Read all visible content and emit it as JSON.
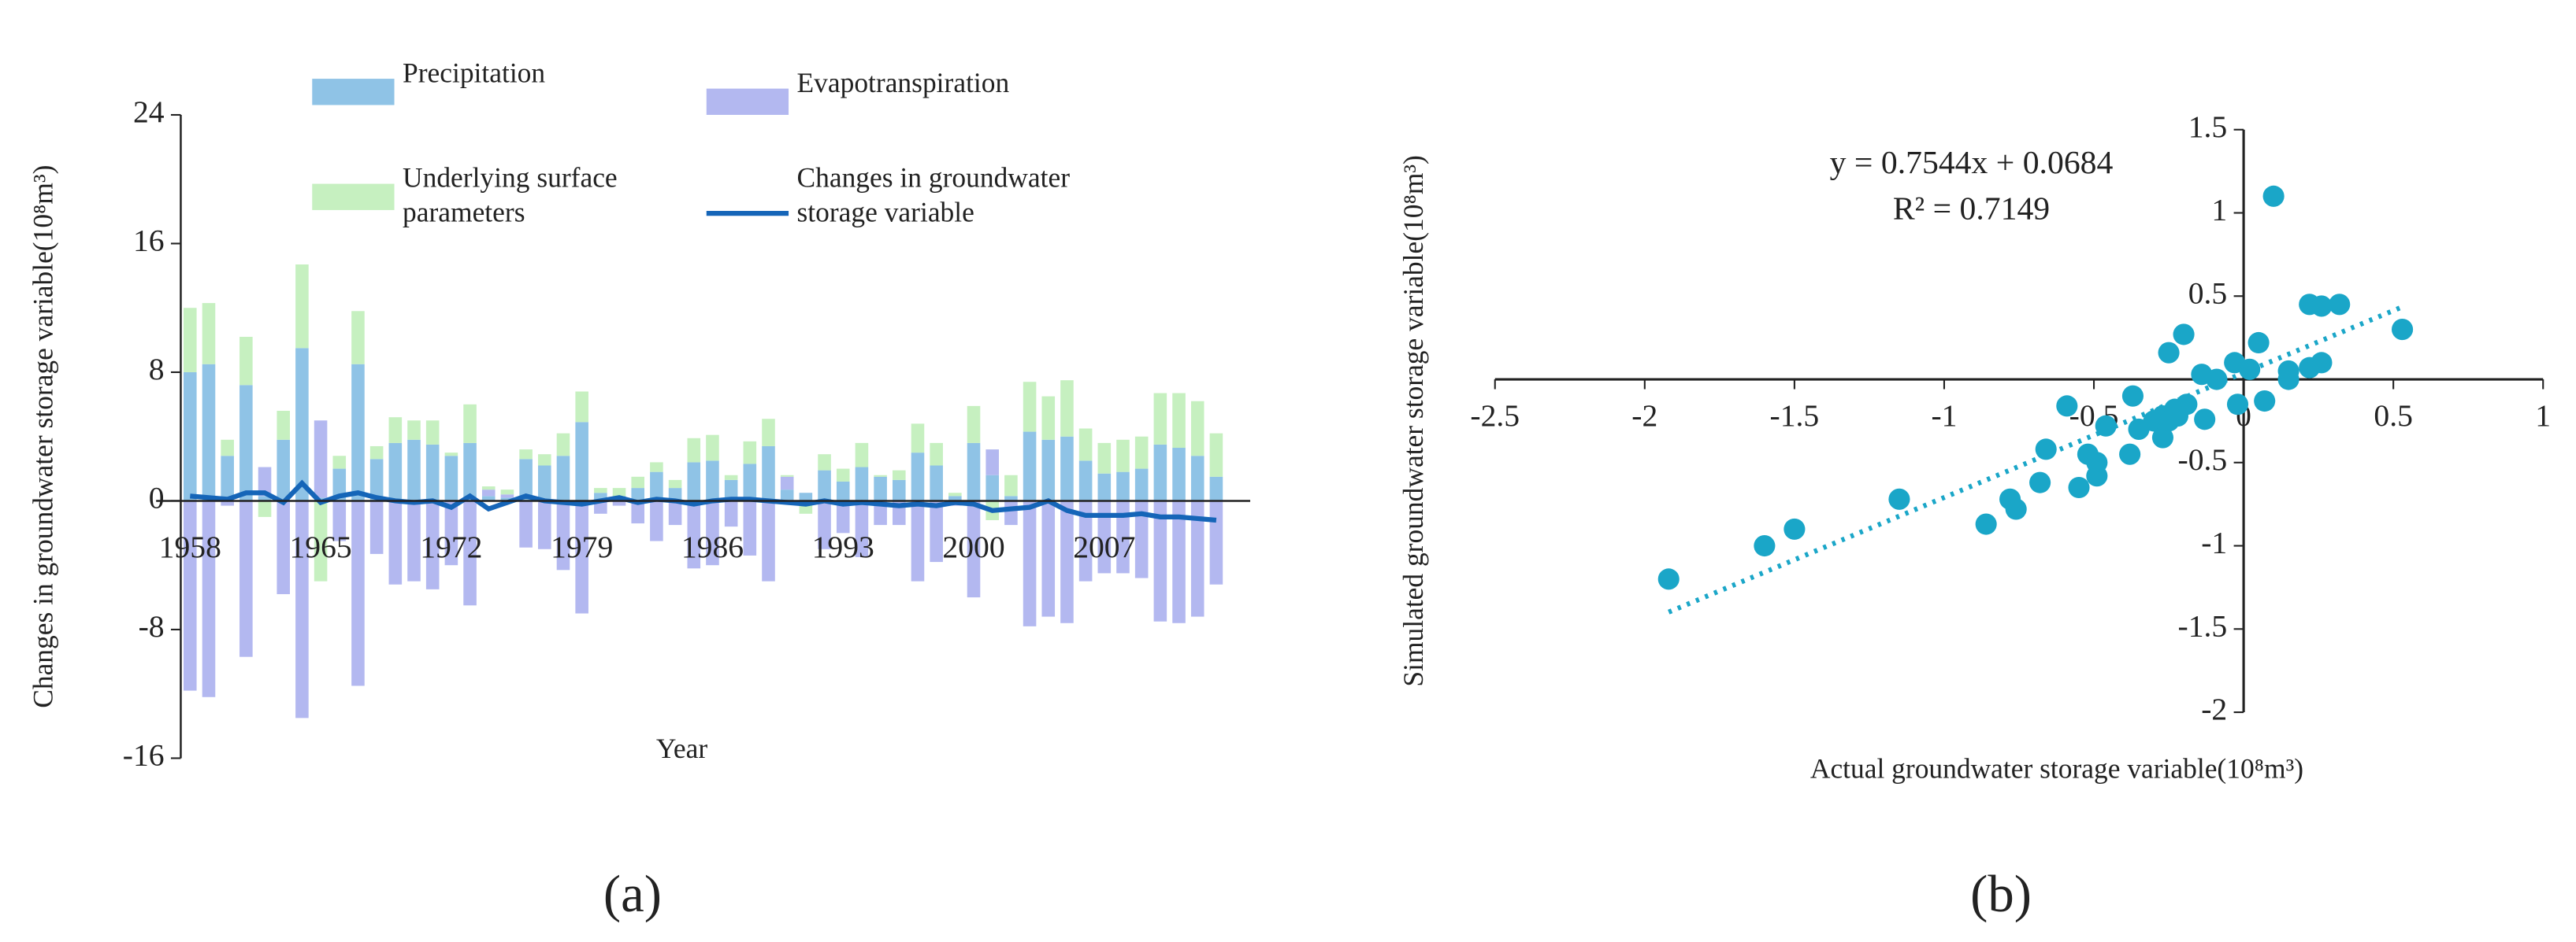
{
  "chart_data": [
    {
      "type": "bar",
      "stacked": true,
      "ylabel": "Changes in groundwater storage variable(10⁸m³)",
      "xlabel": "Year",
      "caption": "(a)",
      "categories": [
        "1958",
        null,
        null,
        null,
        null,
        null,
        null,
        "1965",
        null,
        null,
        null,
        null,
        null,
        null,
        "1972",
        null,
        null,
        null,
        null,
        null,
        null,
        "1979",
        null,
        null,
        null,
        null,
        null,
        null,
        "1986",
        null,
        null,
        null,
        null,
        null,
        null,
        "1993",
        null,
        null,
        null,
        null,
        null,
        null,
        "2000",
        null,
        null,
        null,
        null,
        null,
        null,
        "2007",
        null,
        null,
        null,
        null,
        null,
        null
      ],
      "ylim": [
        -16,
        24
      ],
      "yticks": [
        -16,
        -8,
        0,
        8,
        16,
        24
      ],
      "series": [
        {
          "name": "Precipitation",
          "color": "#8fc3e6",
          "values": [
            8,
            8.5,
            2.8,
            7.2,
            0.3,
            3.8,
            9.5,
            0.2,
            2,
            8.5,
            2.6,
            3.6,
            3.8,
            3.5,
            2.8,
            3.6,
            0.3,
            0.2,
            2.6,
            2.2,
            2.8,
            4.9,
            0.5,
            0.3,
            0.8,
            1.8,
            0.8,
            2.4,
            2.5,
            1.3,
            2.3,
            3.4,
            0.7,
            0.5,
            1.9,
            1.2,
            2.1,
            1.5,
            1.3,
            3,
            2.2,
            0.3,
            3.6,
            1.6,
            0.3,
            4.3,
            3.8,
            4,
            2.5,
            1.7,
            1.8,
            2,
            3.5,
            3.3,
            2.8,
            1.5
          ]
        },
        {
          "name": "Evapotranspiration",
          "color": "#b3b8f0",
          "values": [
            -11.8,
            -12.2,
            -0.3,
            -9.7,
            1.8,
            -5.8,
            -13.5,
            4.8,
            -2.5,
            -11.5,
            -3.3,
            -5.2,
            -5,
            -5.5,
            -4,
            -6.5,
            0.4,
            0.2,
            -2.9,
            -3,
            -4.3,
            -7,
            -0.8,
            -0.3,
            -1.4,
            -2.5,
            -1.5,
            -4.2,
            -4,
            -1.6,
            -3.4,
            -5,
            0.8,
            -0.2,
            -3,
            -2,
            -3.5,
            -1.5,
            -1.5,
            -5,
            -3.8,
            -0.3,
            -6,
            1.6,
            -1.5,
            -7.8,
            -7.2,
            -7.6,
            -5,
            -4.5,
            -4.5,
            -4.8,
            -7.5,
            -7.6,
            -7.2,
            -5.2
          ]
        },
        {
          "name": "Underlying surface parameters",
          "color": "#c6f0c0",
          "values": [
            4,
            3.8,
            1,
            3,
            -1,
            1.8,
            5.2,
            -5,
            0.8,
            3.3,
            0.8,
            1.6,
            1.2,
            1.5,
            0.2,
            2.4,
            0.2,
            0.3,
            0.6,
            0.7,
            1.4,
            1.9,
            0.3,
            0.5,
            0.7,
            0.6,
            0.5,
            1.5,
            1.6,
            0.3,
            1.4,
            1.7,
            0.1,
            -0.6,
            1,
            0.8,
            1.5,
            0.1,
            0.6,
            1.8,
            1.4,
            0.2,
            2.3,
            -1.2,
            1.3,
            3.1,
            2.7,
            3.5,
            2,
            1.9,
            2,
            2,
            3.2,
            3.4,
            3.4,
            2.7
          ]
        },
        {
          "name": "Changes in groundwater storage variable",
          "type": "line",
          "color": "#1565b8",
          "values": [
            0.3,
            0.2,
            0.1,
            0.5,
            0.5,
            -0.1,
            1.1,
            -0.1,
            0.3,
            0.5,
            0.2,
            0,
            -0.1,
            0,
            -0.4,
            0.3,
            -0.5,
            -0.1,
            0.3,
            0,
            -0.1,
            -0.2,
            0,
            0.2,
            -0.1,
            0.1,
            0,
            -0.2,
            0,
            0.1,
            0.1,
            0,
            -0.1,
            -0.2,
            0,
            -0.2,
            -0.1,
            -0.2,
            -0.3,
            -0.2,
            -0.3,
            -0.1,
            -0.2,
            -0.6,
            -0.5,
            -0.4,
            0,
            -0.6,
            -0.9,
            -0.9,
            -0.9,
            -0.8,
            -1,
            -1,
            -1.1,
            -1.2
          ]
        }
      ]
    },
    {
      "type": "scatter",
      "xlabel": "Actual  groundwater storage variable(10⁸m³)",
      "ylabel": "Simulated groundwater storage  variable(10⁸m³)",
      "caption": "(b)",
      "annotations": [
        "y = 0.7544x + 0.0684",
        "R² = 0.7149"
      ],
      "color": "#1aa6c8",
      "trendline": true,
      "xlim": [
        -2.5,
        1
      ],
      "xticks": [
        -2.5,
        -2,
        -1.5,
        -1,
        -0.5,
        0,
        0.5,
        1
      ],
      "ylim": [
        -2,
        1.5
      ],
      "yticks": [
        -2,
        -1.5,
        -1,
        -0.5,
        0.5,
        1,
        1.5
      ],
      "x": [
        0.1,
        -1.92,
        -1.6,
        -1.5,
        -1.15,
        -0.86,
        -0.78,
        -0.76,
        -0.66,
        -0.59,
        -0.68,
        -0.55,
        -0.52,
        -0.49,
        -0.49,
        -0.46,
        -0.38,
        -0.37,
        -0.35,
        -0.3,
        -0.27,
        -0.27,
        -0.25,
        -0.23,
        -0.22,
        -0.25,
        -0.2,
        -0.19,
        -0.14,
        -0.13,
        -0.09,
        -0.02,
        -0.03,
        0.02,
        0.05,
        0.07,
        0.15,
        0.15,
        0.22,
        0.22,
        0.26,
        0.26,
        0.32,
        0.53
      ],
      "values": [
        1.1,
        -1.2,
        -1,
        -0.9,
        -0.72,
        -0.87,
        -0.72,
        -0.78,
        -0.42,
        -0.16,
        -0.62,
        -0.65,
        -0.45,
        -0.5,
        -0.58,
        -0.28,
        -0.45,
        -0.1,
        -0.3,
        -0.25,
        -0.22,
        -0.35,
        -0.25,
        -0.18,
        -0.22,
        0.16,
        0.27,
        -0.15,
        0.03,
        -0.24,
        0,
        -0.15,
        0.1,
        0.06,
        0.22,
        -0.13,
        0.05,
        0,
        0.45,
        0.07,
        0.44,
        0.1,
        0.45,
        0.3
      ]
    }
  ]
}
